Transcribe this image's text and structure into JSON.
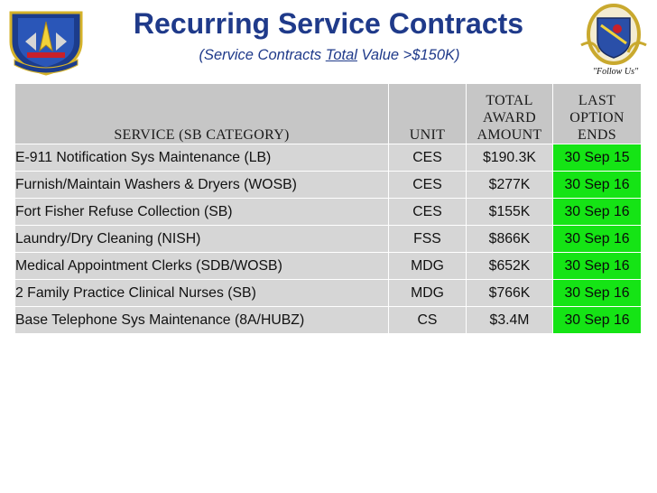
{
  "header": {
    "title": "Recurring Service Contracts",
    "subtitle_prefix": "(Service Contracts ",
    "subtitle_underlined": "Total",
    "subtitle_suffix": " Value >$150K)"
  },
  "colors": {
    "title": "#1f3a8a",
    "header_bg": "#c6c6c6",
    "row_bg": "#d6d6d6",
    "highlight_green": "#15e415"
  },
  "logos": {
    "left": "command-shield-emblem",
    "right": "wing-crest-emblem",
    "right_motto": "\"Follow Us\""
  },
  "table": {
    "headers": {
      "service": "SERVICE (SB CATEGORY)",
      "unit": "UNIT",
      "total_award_line1": "TOTAL",
      "total_award_line2": "AWARD",
      "total_award_line3": "AMOUNT",
      "last_option_line1": "LAST",
      "last_option_line2": "OPTION",
      "last_option_line3": "ENDS"
    },
    "rows": [
      {
        "service": "E-911 Notification Sys Maintenance (LB)",
        "unit": "CES",
        "amount": "$190.3K",
        "ends": "30 Sep 15"
      },
      {
        "service": "Furnish/Maintain Washers & Dryers (WOSB)",
        "unit": "CES",
        "amount": "$277K",
        "ends": "30 Sep 16"
      },
      {
        "service": "Fort Fisher Refuse Collection (SB)",
        "unit": "CES",
        "amount": "$155K",
        "ends": "30 Sep 16"
      },
      {
        "service": "Laundry/Dry Cleaning (NISH)",
        "unit": "FSS",
        "amount": "$866K",
        "ends": "30 Sep 16"
      },
      {
        "service": "Medical Appointment Clerks (SDB/WOSB)",
        "unit": "MDG",
        "amount": "$652K",
        "ends": "30 Sep 16"
      },
      {
        "service": "2 Family Practice Clinical Nurses (SB)",
        "unit": "MDG",
        "amount": "$766K",
        "ends": "30 Sep 16"
      },
      {
        "service": "Base Telephone Sys Maintenance (8A/HUBZ)",
        "unit": "CS",
        "amount": "$3.4M",
        "ends": "30 Sep 16"
      }
    ]
  }
}
